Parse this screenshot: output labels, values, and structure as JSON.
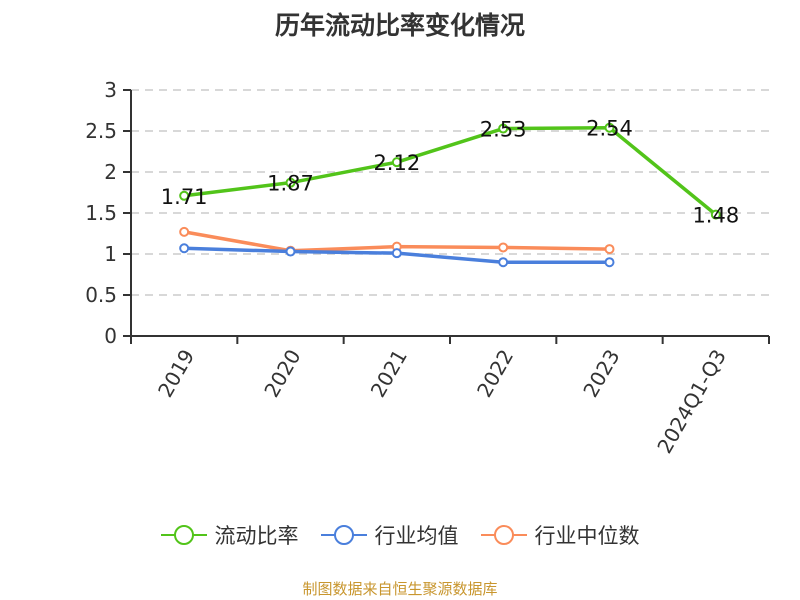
{
  "title": "历年流动比率变化情况",
  "source": "制图数据来自恒生聚源数据库",
  "colors": {
    "current_ratio": "#52c41a",
    "industry_avg": "#4a7fdc",
    "industry_median": "#fa8c5a",
    "grid": "#cccccc",
    "axis": "#333333"
  },
  "legend": [
    {
      "label": "流动比率",
      "color": "#52c41a"
    },
    {
      "label": "行业均值",
      "color": "#4a7fdc"
    },
    {
      "label": "行业中位数",
      "color": "#fa8c5a"
    }
  ],
  "chart_data": {
    "type": "line",
    "title": "历年流动比率变化情况",
    "categories": [
      "2019",
      "2020",
      "2021",
      "2022",
      "2023",
      "2024Q1-Q3"
    ],
    "series": [
      {
        "name": "流动比率",
        "color": "#52c41a",
        "values": [
          1.71,
          1.87,
          2.12,
          2.53,
          2.54,
          1.48
        ],
        "labels": true
      },
      {
        "name": "行业均值",
        "color": "#4a7fdc",
        "values": [
          1.07,
          1.03,
          1.01,
          0.9,
          0.9,
          null
        ],
        "labels": false
      },
      {
        "name": "行业中位数",
        "color": "#fa8c5a",
        "values": [
          1.27,
          1.04,
          1.09,
          1.08,
          1.06,
          null
        ],
        "labels": false
      }
    ],
    "xlabel": "",
    "ylabel": "",
    "ylim": [
      0,
      3
    ],
    "yticks": [
      0,
      0.5,
      1,
      1.5,
      2,
      2.5,
      3
    ],
    "ytick_labels": [
      "0",
      "0.5",
      "1",
      "1.5",
      "2",
      "2.5",
      "3"
    ],
    "grid": true,
    "legend_position": "bottom"
  }
}
